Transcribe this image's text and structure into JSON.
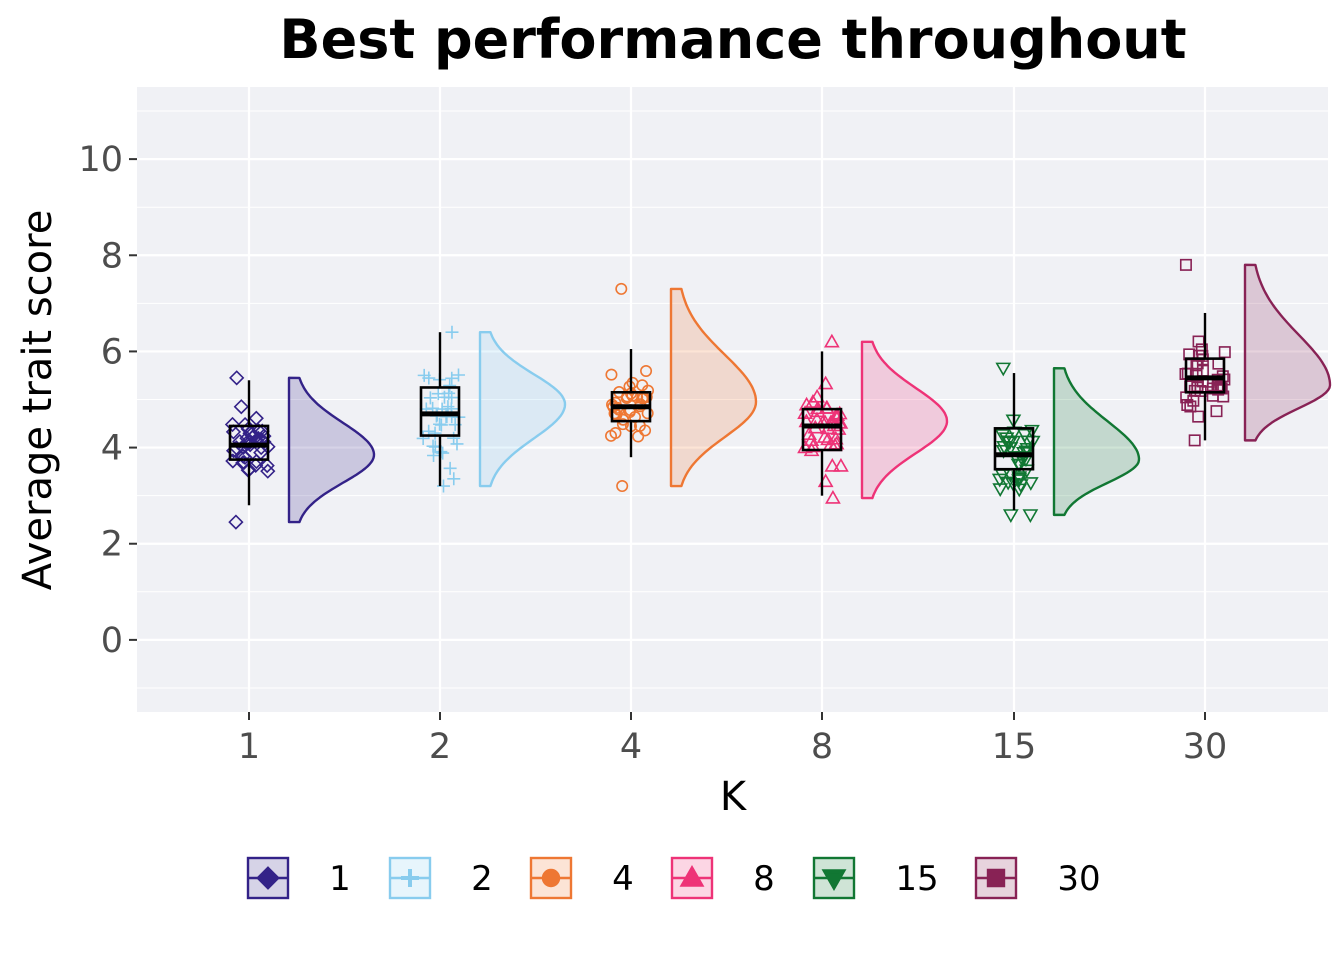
{
  "chart_data": {
    "type": "raincloud",
    "title": "Best performance throughout",
    "xlabel": "K",
    "ylabel": "Average trait score",
    "ylim": [
      -1.5,
      11.5
    ],
    "yticks": [
      0,
      2,
      4,
      6,
      8,
      10
    ],
    "grid": true,
    "legend_position": "bottom",
    "categories": [
      "1",
      "2",
      "4",
      "8",
      "15",
      "30"
    ],
    "series": [
      {
        "name": "1",
        "color": "#332288",
        "marker": "diamond",
        "min": 2.45,
        "q1": 3.75,
        "median": 4.05,
        "q3": 4.45,
        "max": 5.45,
        "mode": 3.85,
        "whisker_low": 2.8,
        "whisker_high": 5.4
      },
      {
        "name": "2",
        "color": "#88CCEE",
        "marker": "plus",
        "min": 3.2,
        "q1": 4.25,
        "median": 4.7,
        "q3": 5.25,
        "max": 6.4,
        "mode": 4.9,
        "whisker_low": 3.2,
        "whisker_high": 6.4
      },
      {
        "name": "4",
        "color": "#EE7733",
        "marker": "circle",
        "min": 3.2,
        "q1": 4.55,
        "median": 4.85,
        "q3": 5.15,
        "max": 7.3,
        "mode": 4.95,
        "whisker_low": 3.8,
        "whisker_high": 6.05
      },
      {
        "name": "8",
        "color": "#EE3377",
        "marker": "triangle-up",
        "min": 2.95,
        "q1": 3.95,
        "median": 4.45,
        "q3": 4.8,
        "max": 6.2,
        "mode": 4.55,
        "whisker_low": 3.0,
        "whisker_high": 6.0
      },
      {
        "name": "15",
        "color": "#117733",
        "marker": "triangle-down",
        "min": 2.6,
        "q1": 3.55,
        "median": 3.85,
        "q3": 4.4,
        "max": 5.65,
        "mode": 3.75,
        "whisker_low": 2.7,
        "whisker_high": 5.55
      },
      {
        "name": "30",
        "color": "#882255",
        "marker": "square",
        "min": 4.15,
        "q1": 5.15,
        "median": 5.45,
        "q3": 5.85,
        "max": 7.8,
        "mode": 5.3,
        "whisker_low": 4.15,
        "whisker_high": 6.8
      }
    ]
  }
}
